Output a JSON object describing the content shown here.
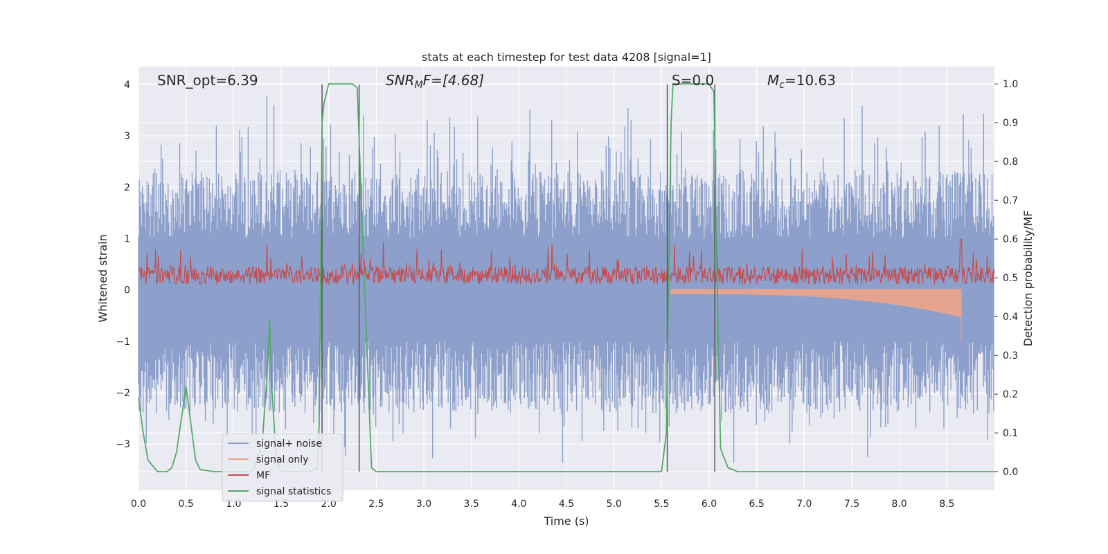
{
  "chart_data": {
    "type": "line",
    "title": "stats at each timestep for test data 4208 [signal=1]",
    "xlabel": "Time (s)",
    "ylabel": "Whitened strain",
    "ylabel_right": "Detection probability/MF",
    "xlim": [
      0,
      9.0
    ],
    "ylim": [
      -3.9,
      4.35
    ],
    "ylim_right": [
      -0.048,
      1.045
    ],
    "x_ticks": [
      "0.0",
      "0.5",
      "1.0",
      "1.5",
      "2.0",
      "2.5",
      "3.0",
      "3.5",
      "4.0",
      "4.5",
      "5.0",
      "5.5",
      "6.0",
      "6.5",
      "7.0",
      "7.5",
      "8.0",
      "8.5"
    ],
    "y_ticks": [
      "4",
      "3",
      "2",
      "1",
      "0",
      "−1",
      "−2",
      "−3"
    ],
    "y_ticks_right": [
      "1.0",
      "0.9",
      "0.8",
      "0.7",
      "0.6",
      "0.5",
      "0.4",
      "0.3",
      "0.2",
      "0.1",
      "0.0"
    ],
    "grid": true,
    "legend_position": "lower-left",
    "annotations": {
      "snr_opt": "SNR_opt=6.39",
      "snr_mf": "SNR",
      "snr_mf_sub": "M",
      "snr_mf_rest": "F=[4.68]",
      "s_stat": "S=0.0",
      "mc": "M",
      "mc_sub": "c",
      "mc_rest": "=10.63"
    },
    "vertical_lines": [
      1.93,
      2.32,
      5.56,
      6.06
    ],
    "series": [
      {
        "name": "signal+ noise",
        "color": "#8da0cb",
        "axis": "left",
        "description": "noise band",
        "amplitude_range": [
          -3.5,
          4.0
        ]
      },
      {
        "name": "signal only",
        "color": "#e5a48f",
        "axis": "left",
        "start": 5.6,
        "end": 8.65,
        "peak_amplitude": -1.0
      },
      {
        "name": "MF",
        "color": "#c44e52",
        "axis": "left",
        "center": 0.25,
        "amplitude_range": [
          0.0,
          1.0
        ]
      },
      {
        "name": "signal statistics",
        "color": "#55a868",
        "axis": "right",
        "x": [
          0.0,
          0.05,
          0.1,
          0.2,
          0.3,
          0.35,
          0.4,
          0.5,
          0.6,
          0.65,
          0.8,
          1.2,
          1.3,
          1.35,
          1.38,
          1.4,
          1.45,
          1.5,
          1.6,
          1.8,
          1.88,
          1.9,
          1.93,
          1.95,
          2.0,
          2.1,
          2.25,
          2.3,
          2.35,
          2.45,
          2.5,
          2.6,
          3.0,
          4.0,
          5.0,
          5.5,
          5.55,
          5.6,
          5.62,
          5.7,
          6.0,
          6.05,
          6.08,
          6.12,
          6.15,
          6.2,
          6.3,
          7.0,
          8.0,
          9.0
        ],
        "y": [
          0.19,
          0.1,
          0.03,
          0.0,
          0.0,
          0.01,
          0.05,
          0.22,
          0.03,
          0.005,
          0.0,
          0.0,
          0.07,
          0.24,
          0.39,
          0.22,
          0.03,
          0.0,
          0.0,
          0.0,
          0.01,
          0.12,
          0.9,
          0.95,
          1.0,
          1.0,
          1.0,
          0.99,
          0.65,
          0.01,
          0.0,
          0.0,
          0.0,
          0.0,
          0.0,
          0.0,
          0.1,
          0.9,
          1.0,
          1.0,
          1.0,
          0.98,
          0.55,
          0.06,
          0.04,
          0.01,
          0.0,
          0.0,
          0.0,
          0.0
        ]
      }
    ]
  },
  "legend": [
    {
      "label": "signal+ noise",
      "color": "#8da0cb"
    },
    {
      "label": "signal only",
      "color": "#e5a48f"
    },
    {
      "label": "MF",
      "color": "#c44e52"
    },
    {
      "label": "signal statistics",
      "color": "#55a868"
    }
  ]
}
